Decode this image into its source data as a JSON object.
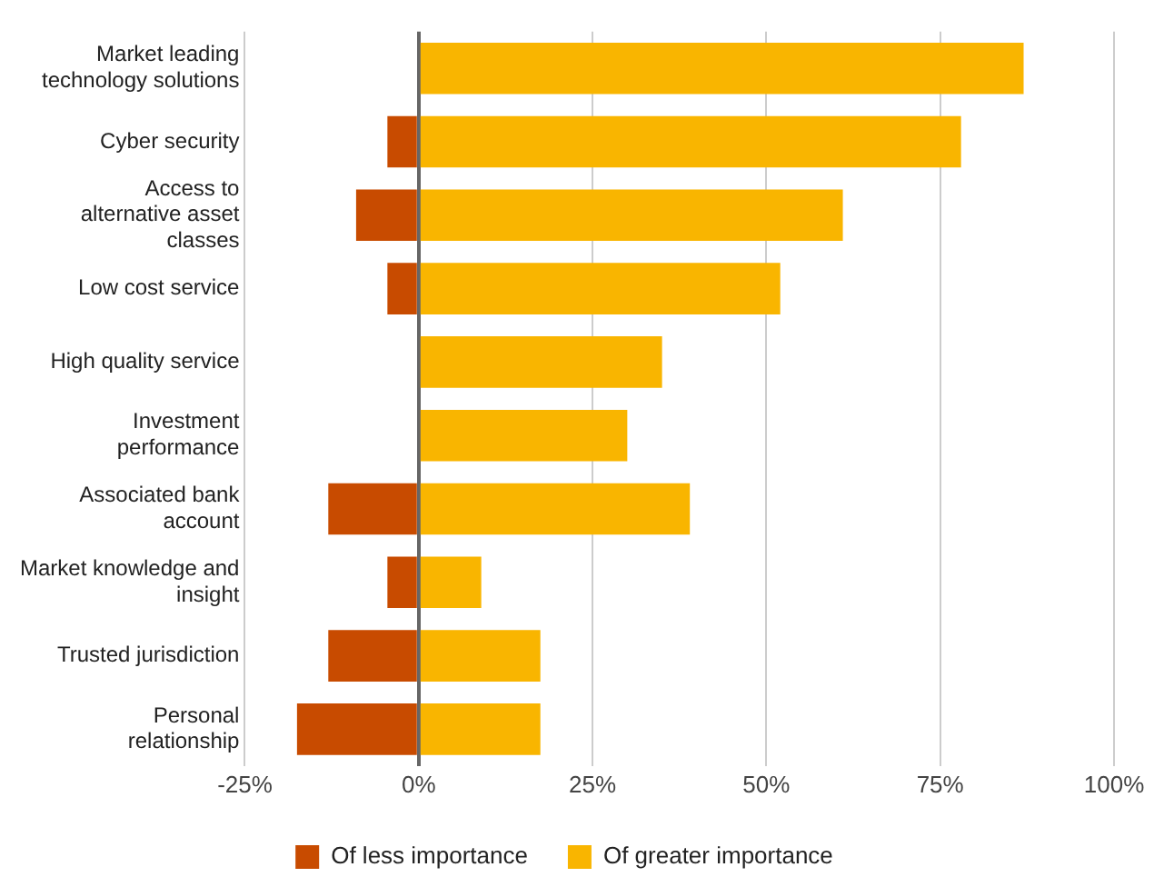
{
  "chart_data": {
    "type": "bar",
    "orientation": "horizontal",
    "stacked": true,
    "categories": [
      "Market leading technology solutions",
      "Cyber security",
      "Access to alternative asset classes",
      "Low cost service",
      "High quality service",
      "Investment performance",
      "Associated bank account",
      "Market knowledge and insight",
      "Trusted jurisdiction",
      "Personal relationship"
    ],
    "series": [
      {
        "name": "Of less importance",
        "color": "#c84b00",
        "values": [
          null,
          -4.5,
          -9,
          -4.5,
          null,
          null,
          -13,
          -4.5,
          -13,
          -17.5
        ]
      },
      {
        "name": "Of greater importance",
        "color": "#f9b500",
        "values": [
          87,
          78,
          61,
          52,
          35,
          30,
          39,
          9,
          17.5,
          17.5
        ]
      }
    ],
    "xlim": [
      -25,
      100
    ],
    "xticks": [
      {
        "value": -25,
        "label": "-25%"
      },
      {
        "value": 0,
        "label": "0%"
      },
      {
        "value": 25,
        "label": "25%"
      },
      {
        "value": 50,
        "label": "50%"
      },
      {
        "value": 75,
        "label": "75%"
      },
      {
        "value": 100,
        "label": "100%"
      }
    ],
    "grid": "x",
    "legend": "bottom"
  }
}
